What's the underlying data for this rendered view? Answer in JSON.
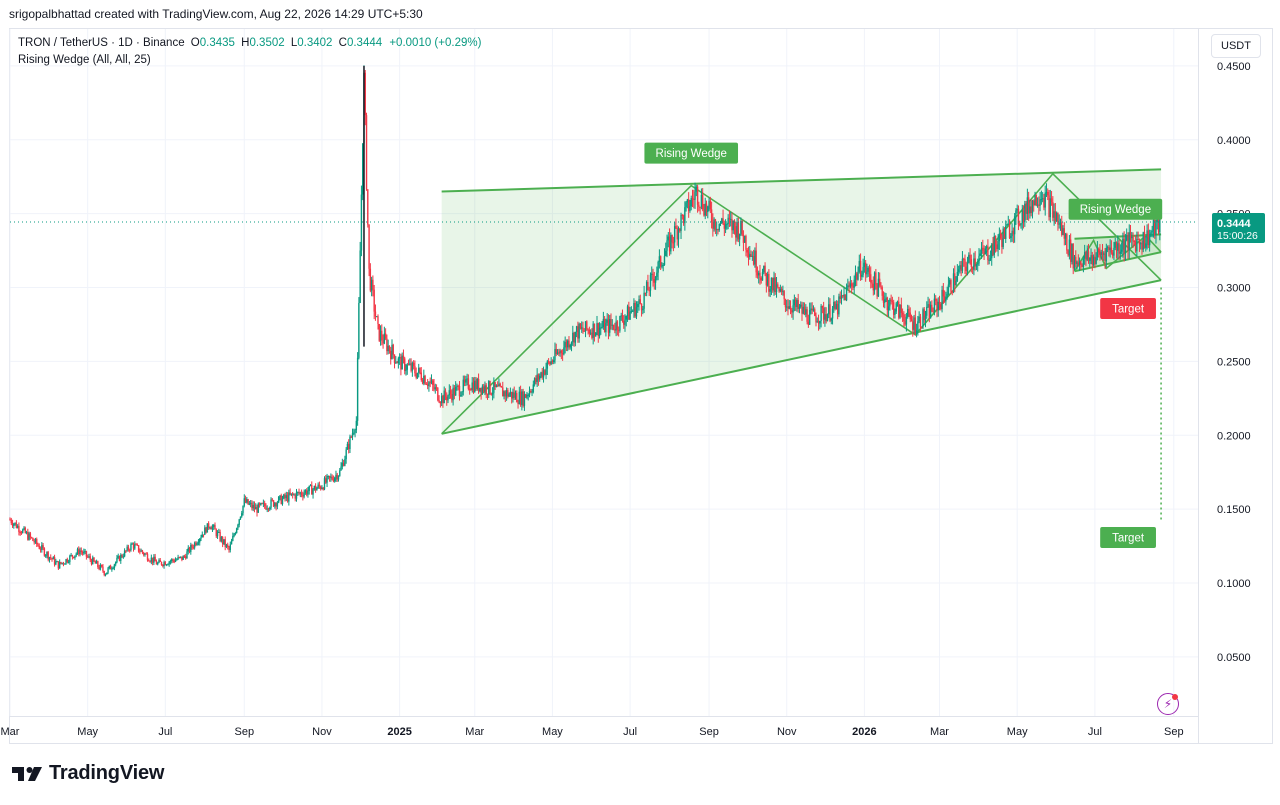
{
  "header": {
    "publisher_line": "srigopalbhattad created with TradingView.com, Aug 22, 2026 14:29 UTC+5:30"
  },
  "legend": {
    "symbol": "TRON / TetherUS · 1D · Binance",
    "open_label": "O",
    "open": "0.3435",
    "high_label": "H",
    "high": "0.3502",
    "low_label": "L",
    "low": "0.3402",
    "close_label": "C",
    "close": "0.3444",
    "change": "+0.0010 (+0.29%)",
    "indicator": "Rising Wedge (All, All, 25)"
  },
  "toolbar": {
    "currency": "USDT"
  },
  "price_badge": {
    "price": "0.3444",
    "countdown": "15:00:26",
    "color": "#089981"
  },
  "brand": {
    "name": "TradingView"
  },
  "icons": {
    "logo": "tradingview-logo-icon",
    "alert": "lightning-bolt-icon"
  },
  "colors": {
    "up": "#089981",
    "down": "#f23645",
    "wedge_line": "#4caf50",
    "wedge_fill": "#4caf50",
    "label_green": "#4caf50",
    "label_red": "#f23645"
  },
  "chart_data": {
    "type": "candlestick",
    "title": "TRON / TetherUS · 1D · Binance",
    "ylim": [
      0.01,
      0.475
    ],
    "x_range": [
      "2024-03-01",
      "2026-09-20"
    ],
    "y_ticks": [
      "0.4500",
      "0.4000",
      "0.3500",
      "0.3000",
      "0.2500",
      "0.2000",
      "0.1500",
      "0.1000",
      "0.0500"
    ],
    "y_tick_values": [
      0.45,
      0.4,
      0.35,
      0.3,
      0.25,
      0.2,
      0.15,
      0.1,
      0.05
    ],
    "x_ticks": [
      {
        "label": "Mar",
        "date": "2024-03-01"
      },
      {
        "label": "May",
        "date": "2024-05-01"
      },
      {
        "label": "Jul",
        "date": "2024-07-01"
      },
      {
        "label": "Sep",
        "date": "2024-09-01"
      },
      {
        "label": "Nov",
        "date": "2024-11-01"
      },
      {
        "label": "2025",
        "date": "2025-01-01",
        "bold": true
      },
      {
        "label": "Mar",
        "date": "2025-03-01"
      },
      {
        "label": "May",
        "date": "2025-05-01"
      },
      {
        "label": "Jul",
        "date": "2025-07-01"
      },
      {
        "label": "Sep",
        "date": "2025-09-01"
      },
      {
        "label": "Nov",
        "date": "2025-11-01"
      },
      {
        "label": "2026",
        "date": "2026-01-01",
        "bold": true
      },
      {
        "label": "Mar",
        "date": "2026-03-01"
      },
      {
        "label": "May",
        "date": "2026-05-01"
      },
      {
        "label": "Jul",
        "date": "2026-07-01"
      },
      {
        "label": "Sep",
        "date": "2026-09-01"
      }
    ],
    "last_price": 0.3444,
    "price_path": [
      [
        "2024-03-01",
        0.143
      ],
      [
        "2024-03-20",
        0.128
      ],
      [
        "2024-04-08",
        0.112
      ],
      [
        "2024-04-25",
        0.122
      ],
      [
        "2024-05-15",
        0.107
      ],
      [
        "2024-06-05",
        0.126
      ],
      [
        "2024-06-25",
        0.113
      ],
      [
        "2024-07-15",
        0.117
      ],
      [
        "2024-08-05",
        0.14
      ],
      [
        "2024-08-20",
        0.122
      ],
      [
        "2024-09-01",
        0.155
      ],
      [
        "2024-09-10",
        0.15
      ],
      [
        "2024-10-05",
        0.158
      ],
      [
        "2024-10-30",
        0.165
      ],
      [
        "2024-11-15",
        0.175
      ],
      [
        "2024-11-28",
        0.21
      ],
      [
        "2024-12-04",
        0.44
      ],
      [
        "2024-12-08",
        0.31
      ],
      [
        "2024-12-15",
        0.27
      ],
      [
        "2024-12-31",
        0.25
      ],
      [
        "2025-01-20",
        0.24
      ],
      [
        "2025-02-03",
        0.225
      ],
      [
        "2025-02-25",
        0.235
      ],
      [
        "2025-03-20",
        0.23
      ],
      [
        "2025-04-08",
        0.225
      ],
      [
        "2025-04-25",
        0.245
      ],
      [
        "2025-05-20",
        0.27
      ],
      [
        "2025-06-20",
        0.275
      ],
      [
        "2025-07-10",
        0.29
      ],
      [
        "2025-08-01",
        0.33
      ],
      [
        "2025-08-22",
        0.365
      ],
      [
        "2025-09-05",
        0.345
      ],
      [
        "2025-09-25",
        0.34
      ],
      [
        "2025-10-12",
        0.31
      ],
      [
        "2025-11-01",
        0.29
      ],
      [
        "2025-11-20",
        0.28
      ],
      [
        "2025-12-10",
        0.285
      ],
      [
        "2025-12-30",
        0.315
      ],
      [
        "2026-01-20",
        0.29
      ],
      [
        "2026-02-10",
        0.275
      ],
      [
        "2026-03-01",
        0.29
      ],
      [
        "2026-03-20",
        0.315
      ],
      [
        "2026-04-10",
        0.325
      ],
      [
        "2026-04-30",
        0.345
      ],
      [
        "2026-05-20",
        0.365
      ],
      [
        "2026-06-02",
        0.345
      ],
      [
        "2026-06-15",
        0.318
      ],
      [
        "2026-06-30",
        0.32
      ],
      [
        "2026-07-10",
        0.325
      ],
      [
        "2026-07-25",
        0.33
      ],
      [
        "2026-08-10",
        0.333
      ],
      [
        "2026-08-22",
        0.3444
      ]
    ],
    "spike_high": 0.45,
    "patterns": [
      {
        "label": "Rising Wedge",
        "upper": [
          [
            "2025-02-03",
            0.365
          ],
          [
            "2026-08-22",
            0.38
          ]
        ],
        "lower": [
          [
            "2025-02-03",
            0.201
          ],
          [
            "2026-08-22",
            0.305
          ]
        ],
        "zigzag": [
          [
            "2025-02-03",
            0.201
          ],
          [
            "2025-08-18",
            0.369
          ],
          [
            "2026-02-10",
            0.268
          ],
          [
            "2026-05-29",
            0.377
          ],
          [
            "2026-08-22",
            0.305
          ]
        ],
        "label_anchor": [
          "2025-08-18",
          0.391
        ]
      },
      {
        "label": "Rising Wedge",
        "upper": [
          [
            "2026-06-15",
            0.333
          ],
          [
            "2026-08-22",
            0.336
          ]
        ],
        "lower": [
          [
            "2026-06-15",
            0.311
          ],
          [
            "2026-08-22",
            0.324
          ]
        ],
        "zigzag": [
          [
            "2026-06-15",
            0.311
          ],
          [
            "2026-06-30",
            0.332
          ],
          [
            "2026-07-10",
            0.313
          ],
          [
            "2026-08-10",
            0.335
          ],
          [
            "2026-08-22",
            0.324
          ]
        ],
        "label_anchor": [
          "2026-06-22",
          0.353
        ]
      }
    ],
    "targets": [
      {
        "label": "Target",
        "value": 0.3,
        "color": "#f23645"
      },
      {
        "label": "Target",
        "value": 0.141,
        "color": "#4caf50"
      }
    ]
  }
}
